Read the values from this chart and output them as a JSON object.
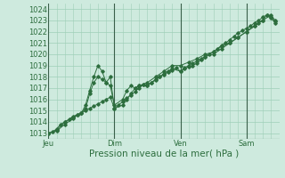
{
  "bg_color": "#ceeade",
  "grid_color": "#9ecfb8",
  "line_color": "#2d6e3e",
  "marker_color": "#2d6e3e",
  "ylim": [
    1012.5,
    1024.5
  ],
  "yticks": [
    1013,
    1014,
    1015,
    1016,
    1017,
    1018,
    1019,
    1020,
    1021,
    1022,
    1023,
    1024
  ],
  "xlabel": "Pression niveau de la mer( hPa )",
  "xlabel_fontsize": 7.5,
  "tick_fontsize": 6,
  "day_labels": [
    "Jeu",
    "Dim",
    "Ven",
    "Sam"
  ],
  "day_positions": [
    0,
    48,
    96,
    144
  ],
  "total_hours": 168,
  "vline_color": "#3a5f4a",
  "series1": [
    [
      0,
      1013.0
    ],
    [
      3,
      1013.1
    ],
    [
      6,
      1013.4
    ],
    [
      9,
      1013.8
    ],
    [
      12,
      1014.0
    ],
    [
      15,
      1014.2
    ],
    [
      18,
      1014.4
    ],
    [
      21,
      1014.6
    ],
    [
      24,
      1014.8
    ],
    [
      27,
      1015.0
    ],
    [
      30,
      1015.2
    ],
    [
      33,
      1015.4
    ],
    [
      36,
      1015.6
    ],
    [
      39,
      1015.8
    ],
    [
      42,
      1016.0
    ],
    [
      45,
      1016.2
    ],
    [
      48,
      1015.2
    ],
    [
      51,
      1015.5
    ],
    [
      54,
      1015.8
    ],
    [
      57,
      1016.1
    ],
    [
      60,
      1016.4
    ],
    [
      63,
      1016.7
    ],
    [
      66,
      1017.0
    ],
    [
      69,
      1017.3
    ],
    [
      72,
      1017.2
    ],
    [
      75,
      1017.5
    ],
    [
      78,
      1017.7
    ],
    [
      81,
      1018.0
    ],
    [
      84,
      1018.2
    ],
    [
      87,
      1018.4
    ],
    [
      90,
      1018.6
    ],
    [
      93,
      1018.8
    ],
    [
      96,
      1018.5
    ],
    [
      99,
      1018.8
    ],
    [
      102,
      1019.0
    ],
    [
      105,
      1019.2
    ],
    [
      108,
      1019.4
    ],
    [
      111,
      1019.6
    ],
    [
      114,
      1019.8
    ],
    [
      117,
      1020.0
    ],
    [
      120,
      1020.2
    ],
    [
      123,
      1020.5
    ],
    [
      126,
      1020.8
    ],
    [
      129,
      1021.0
    ],
    [
      132,
      1021.3
    ],
    [
      135,
      1021.6
    ],
    [
      138,
      1021.9
    ],
    [
      141,
      1022.1
    ],
    [
      144,
      1022.3
    ],
    [
      147,
      1022.5
    ],
    [
      150,
      1022.8
    ],
    [
      153,
      1023.0
    ],
    [
      156,
      1023.3
    ],
    [
      159,
      1023.5
    ],
    [
      162,
      1023.3
    ],
    [
      165,
      1022.9
    ]
  ],
  "series2": [
    [
      0,
      1013.0
    ],
    [
      6,
      1013.3
    ],
    [
      12,
      1014.0
    ],
    [
      18,
      1014.5
    ],
    [
      24,
      1014.8
    ],
    [
      27,
      1015.2
    ],
    [
      30,
      1016.5
    ],
    [
      33,
      1017.5
    ],
    [
      36,
      1018.0
    ],
    [
      39,
      1017.8
    ],
    [
      42,
      1017.5
    ],
    [
      45,
      1018.0
    ],
    [
      48,
      1015.2
    ],
    [
      54,
      1015.5
    ],
    [
      57,
      1016.0
    ],
    [
      60,
      1016.5
    ],
    [
      63,
      1017.0
    ],
    [
      66,
      1017.2
    ],
    [
      69,
      1017.3
    ],
    [
      72,
      1017.2
    ],
    [
      75,
      1017.5
    ],
    [
      78,
      1017.8
    ],
    [
      81,
      1018.0
    ],
    [
      84,
      1018.3
    ],
    [
      87,
      1018.5
    ],
    [
      90,
      1018.7
    ],
    [
      96,
      1018.5
    ],
    [
      99,
      1018.7
    ],
    [
      102,
      1018.9
    ],
    [
      105,
      1019.0
    ],
    [
      108,
      1019.2
    ],
    [
      111,
      1019.5
    ],
    [
      114,
      1019.8
    ],
    [
      120,
      1020.0
    ],
    [
      126,
      1020.5
    ],
    [
      132,
      1021.0
    ],
    [
      138,
      1021.5
    ],
    [
      144,
      1022.0
    ],
    [
      150,
      1022.5
    ],
    [
      156,
      1023.0
    ],
    [
      162,
      1023.5
    ],
    [
      165,
      1023.0
    ]
  ],
  "series3": [
    [
      0,
      1013.0
    ],
    [
      6,
      1013.2
    ],
    [
      12,
      1013.8
    ],
    [
      18,
      1014.3
    ],
    [
      21,
      1014.6
    ],
    [
      24,
      1014.8
    ],
    [
      27,
      1015.5
    ],
    [
      30,
      1016.8
    ],
    [
      33,
      1018.0
    ],
    [
      36,
      1019.0
    ],
    [
      39,
      1018.5
    ],
    [
      42,
      1017.5
    ],
    [
      45,
      1017.2
    ],
    [
      48,
      1015.5
    ],
    [
      54,
      1016.0
    ],
    [
      57,
      1016.8
    ],
    [
      60,
      1017.2
    ],
    [
      63,
      1017.0
    ],
    [
      66,
      1017.2
    ],
    [
      72,
      1017.5
    ],
    [
      78,
      1018.0
    ],
    [
      84,
      1018.5
    ],
    [
      90,
      1019.0
    ],
    [
      96,
      1019.0
    ],
    [
      102,
      1019.3
    ],
    [
      108,
      1019.6
    ],
    [
      114,
      1020.0
    ],
    [
      120,
      1020.2
    ],
    [
      126,
      1020.7
    ],
    [
      132,
      1021.0
    ],
    [
      138,
      1021.5
    ],
    [
      144,
      1022.0
    ],
    [
      150,
      1022.5
    ],
    [
      153,
      1022.8
    ],
    [
      156,
      1023.0
    ],
    [
      159,
      1023.5
    ],
    [
      162,
      1023.2
    ],
    [
      165,
      1022.8
    ]
  ]
}
